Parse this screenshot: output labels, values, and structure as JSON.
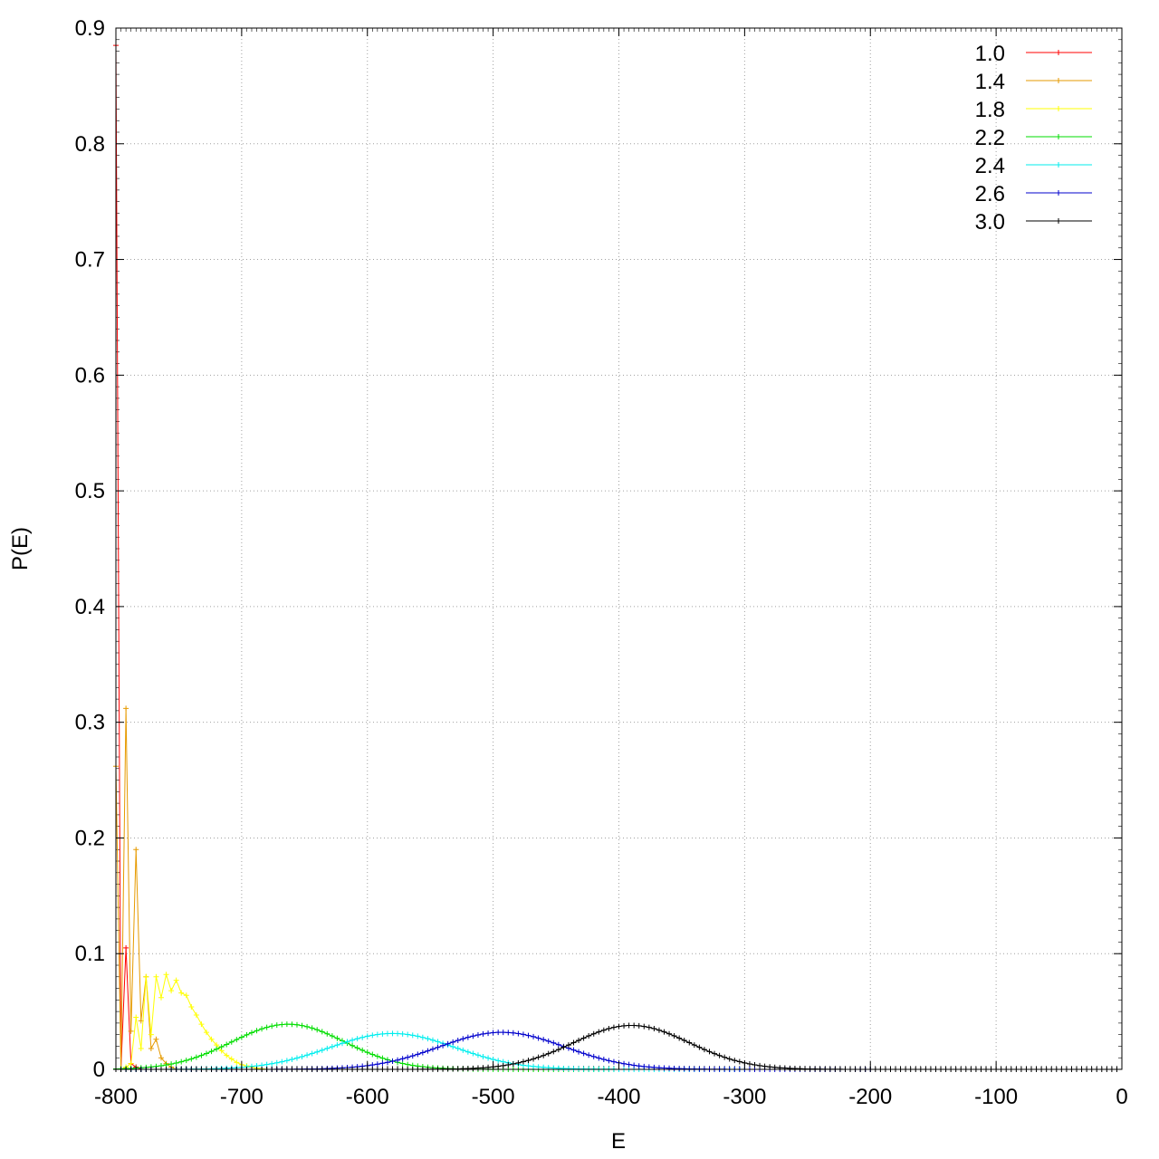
{
  "chart_data": {
    "type": "line",
    "xlabel": "E",
    "ylabel": "P(E)",
    "xlim": [
      -800,
      0
    ],
    "ylim": [
      0,
      0.9
    ],
    "x_ticks": [
      "-800",
      "-700",
      "-600",
      "-500",
      "-400",
      "-300",
      "-200",
      "-100",
      "0"
    ],
    "y_ticks": [
      "0",
      "0.1",
      "0.2",
      "0.3",
      "0.4",
      "0.5",
      "0.6",
      "0.7",
      "0.8",
      "0.9"
    ],
    "grid": true,
    "legend_position": "top-right",
    "series": [
      {
        "name": "1.0",
        "color": "#ff0000",
        "x": [
          -800,
          -796,
          -792,
          -788,
          -784,
          -780,
          -776,
          -772
        ],
        "y": [
          0.885,
          0.0,
          0.105,
          0.005,
          0.002,
          0.0,
          0.0,
          0.0
        ]
      },
      {
        "name": "1.4",
        "color": "#e69a00",
        "x": [
          -800,
          -796,
          -792,
          -788,
          -784,
          -780,
          -776,
          -772,
          -768,
          -764,
          -760,
          -756,
          -752,
          -748
        ],
        "y": [
          0.262,
          0.0,
          0.312,
          0.033,
          0.19,
          0.042,
          0.08,
          0.018,
          0.026,
          0.01,
          0.005,
          0.002,
          0.0,
          0.0
        ]
      },
      {
        "name": "1.8",
        "color": "#ffff00",
        "x": [
          -800,
          -796,
          -792,
          -788,
          -784,
          -780,
          -776,
          -772,
          -768,
          -764,
          -760,
          -756,
          -752,
          -748,
          -744,
          -740,
          -736,
          -732,
          -728,
          -724,
          -720,
          -716,
          -712,
          -708,
          -704,
          -700,
          -696,
          -692,
          -688,
          -684,
          -680
        ],
        "y": [
          0.0,
          0.0,
          0.002,
          0.005,
          0.045,
          0.018,
          0.08,
          0.03,
          0.08,
          0.062,
          0.082,
          0.068,
          0.077,
          0.066,
          0.064,
          0.054,
          0.047,
          0.039,
          0.032,
          0.026,
          0.021,
          0.016,
          0.012,
          0.009,
          0.006,
          0.004,
          0.003,
          0.002,
          0.001,
          0.0005,
          0.0
        ]
      },
      {
        "name": "2.2",
        "color": "#00dd00",
        "peak": 0.039,
        "mu": -663,
        "sigma": 45,
        "xmin": -800,
        "xmax": -400,
        "step": 4
      },
      {
        "name": "2.4",
        "color": "#00eeee",
        "peak": 0.031,
        "mu": -580,
        "sigma": 50,
        "xmin": -800,
        "xmax": -300,
        "step": 4
      },
      {
        "name": "2.6",
        "color": "#0000cc",
        "peak": 0.032,
        "mu": -493,
        "sigma": 50,
        "xmin": -800,
        "xmax": -200,
        "step": 4
      },
      {
        "name": "3.0",
        "color": "#000000",
        "peak": 0.038,
        "mu": -390,
        "sigma": 46,
        "xmin": -800,
        "xmax": -2,
        "step": 4
      }
    ]
  }
}
